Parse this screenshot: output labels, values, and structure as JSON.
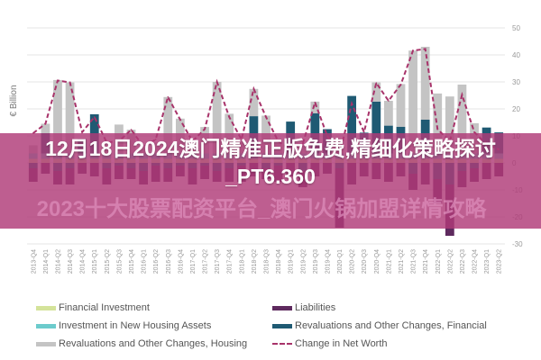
{
  "banner": {
    "title": "12月18日2024澳门精准正版免费,精细化策略探讨_PT6.360",
    "watermark": "2023十大股票配资平台_澳门火锅加盟详情攻略"
  },
  "chart_data": {
    "type": "bar",
    "stacked": true,
    "ylabel": "€ Billion",
    "ylim": [
      -30,
      50
    ],
    "yticks": [
      50,
      40,
      30,
      20,
      10,
      0,
      -10,
      -20,
      -30
    ],
    "grid": true,
    "legend_position": "bottom",
    "categories": [
      "2013-Q4",
      "2014-Q1",
      "2014-Q2",
      "2014-Q3",
      "2014-Q4",
      "2015-Q1",
      "2015-Q2",
      "2015-Q3",
      "2015-Q4",
      "2016-Q1",
      "2016-Q2",
      "2016-Q3",
      "2016-Q4",
      "2017-Q1",
      "2017-Q2",
      "2017-Q3",
      "2017-Q4",
      "2018-Q1",
      "2018-Q2",
      "2018-Q3",
      "2018-Q4",
      "2019-Q1",
      "2019-Q2",
      "2019-Q3",
      "2019-Q4",
      "2020-Q1",
      "2020-Q2",
      "2020-Q3",
      "2020-Q4",
      "2021-Q1",
      "2021-Q2",
      "2021-Q3",
      "2021-Q4",
      "2022-Q1",
      "2022-Q2",
      "2022-Q3",
      "2022-Q4",
      "2023-Q1",
      "2023-Q2"
    ],
    "series": [
      {
        "name": "Financial Investment",
        "kind": "bar",
        "color": "#d4e39a",
        "values": [
          1.5,
          1.5,
          1.5,
          1.5,
          1.5,
          1.5,
          1.5,
          1.5,
          1.5,
          1.5,
          1.5,
          1.5,
          1.5,
          1.5,
          1.5,
          1.5,
          1.5,
          1.5,
          1.5,
          1.5,
          1.5,
          1.5,
          1.5,
          1.5,
          1.5,
          1.5,
          1.5,
          1.5,
          1.5,
          1.5,
          1.5,
          1.5,
          1.5,
          1.5,
          1.5,
          1.5,
          1.5,
          1.5,
          1.5
        ]
      },
      {
        "name": "Investment in New Housing Assets",
        "kind": "bar",
        "color": "#6ccbcc",
        "values": [
          2,
          2,
          2,
          2,
          2,
          2,
          2,
          2,
          2,
          2,
          2,
          2,
          2,
          2,
          2,
          2,
          2,
          2,
          2,
          2,
          2,
          2,
          2,
          2,
          2,
          2,
          2,
          2,
          2,
          2,
          2,
          2,
          2,
          2,
          2,
          2,
          2,
          2,
          2
        ]
      },
      {
        "name": "Revaluations and Other Changes, Financial",
        "kind": "bar",
        "color": "#1f5a73",
        "values": [
          -2,
          7.5,
          -3,
          -2,
          5.4,
          14.5,
          -2,
          -1,
          -2,
          -3,
          -1,
          -2,
          -1,
          -2,
          -1,
          -3,
          -2,
          -1,
          13.8,
          -2,
          -1,
          11.8,
          -3,
          14.9,
          9,
          -2,
          21.3,
          7.7,
          19.2,
          10.3,
          9.9,
          -4,
          12.5,
          -6,
          -8,
          -3,
          -2,
          9.6,
          7.8
        ]
      },
      {
        "name": "Revaluations and Other Changes, Housing",
        "kind": "bar",
        "color": "#c4c4c4",
        "values": [
          3,
          3.5,
          27.2,
          26.3,
          0,
          0,
          2,
          10.7,
          8.8,
          2,
          4,
          20.9,
          12.9,
          3,
          9.8,
          26.5,
          14.7,
          4,
          10.1,
          14,
          4,
          0,
          3,
          4.3,
          0,
          2,
          0,
          0,
          7.1,
          9.2,
          15.8,
          38.1,
          27,
          22.2,
          21.1,
          25.5,
          11.2,
          0,
          0
        ]
      },
      {
        "name": "Liabilities",
        "kind": "bar",
        "color": "#5e2a5e",
        "values": [
          -5,
          -4,
          -5,
          -6,
          -4,
          -5,
          -6,
          -5,
          -4,
          -5,
          -6,
          -5,
          -4,
          -6,
          -5,
          -4,
          -5,
          -6,
          -5,
          -4,
          -6,
          -5,
          -6,
          -5,
          -4,
          -22,
          -8,
          -5,
          -6,
          -7,
          -5,
          -6,
          -8,
          -9,
          -19,
          -6,
          -5,
          -6,
          -5
        ]
      },
      {
        "name": "Change in Net Worth",
        "kind": "line",
        "color": "#a8336a",
        "dashed": true,
        "values": [
          11,
          14.5,
          30.5,
          29.8,
          11.4,
          17,
          7.6,
          8,
          12.3,
          6,
          8.7,
          24.4,
          16,
          8,
          12.5,
          30,
          17,
          8.7,
          27.4,
          17,
          8,
          5,
          7,
          22.4,
          10,
          3,
          22,
          11.4,
          29.6,
          23,
          29,
          41.6,
          42.2,
          12.5,
          8,
          25.2,
          11.4,
          7,
          5
        ]
      }
    ]
  }
}
